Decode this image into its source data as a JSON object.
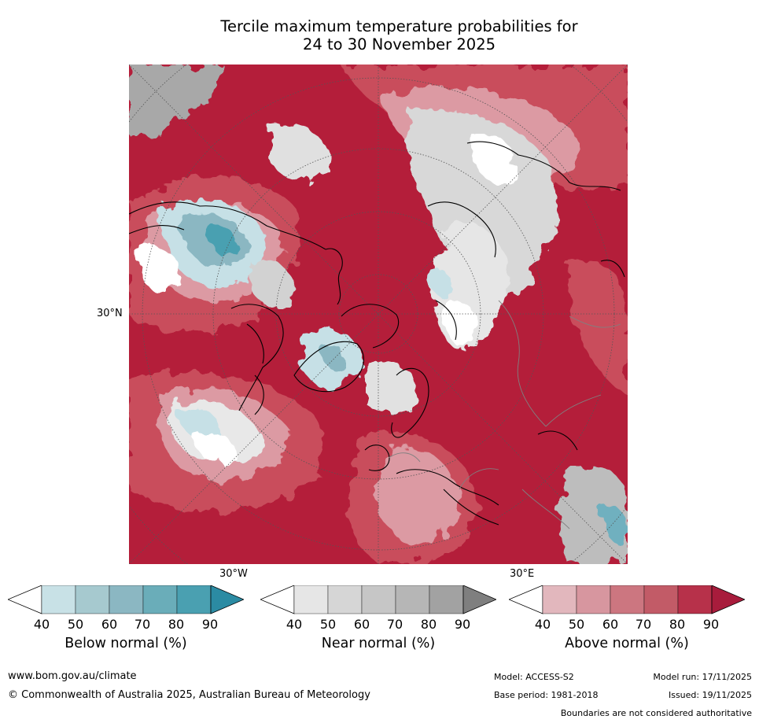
{
  "title": {
    "line1": "Tercile maximum temperature probabilities for",
    "line2": "24 to 30 November 2025"
  },
  "map": {
    "projection": "north-polar-stereographic",
    "lat_labels": [
      "30°N"
    ],
    "lon_labels": [
      "30°W",
      "30°E"
    ]
  },
  "colorbars": [
    {
      "label": "Below normal (%)",
      "ticks": [
        "40",
        "50",
        "60",
        "70",
        "80",
        "90"
      ],
      "colors": [
        "#ffffff",
        "#c8e1e6",
        "#a6c9cf",
        "#8bb7c2",
        "#6aadb9",
        "#4aa0b1",
        "#2b8ba3"
      ]
    },
    {
      "label": "Near normal (%)",
      "ticks": [
        "40",
        "50",
        "60",
        "70",
        "80",
        "90"
      ],
      "colors": [
        "#ffffff",
        "#e6e6e6",
        "#d6d6d6",
        "#c6c6c6",
        "#b6b6b6",
        "#a2a2a2",
        "#7f7f7f"
      ]
    },
    {
      "label": "Above normal (%)",
      "ticks": [
        "40",
        "50",
        "60",
        "70",
        "80",
        "90"
      ],
      "colors": [
        "#ffffff",
        "#e2b7bd",
        "#d7969f",
        "#cc7680",
        "#c25b67",
        "#b7314a",
        "#a81c3c"
      ]
    }
  ],
  "footer": {
    "website": "www.bom.gov.au/climate",
    "copyright": "© Commonwealth of Australia 2025, Australian Bureau of Meteorology",
    "model": "Model: ACCESS-S2",
    "model_run": "Model run: 17/11/2025",
    "base_period": "Base period: 1981-2018",
    "issued": "Issued: 19/11/2025",
    "disclaimer": "Boundaries are not considered authoritative"
  },
  "palette": {
    "above_high": "#b41e3a",
    "above_mid": "#c94d5c",
    "above_low": "#dc9aa3",
    "near": "#d8d8d8",
    "near_dark": "#a8a8a8",
    "below": "#6fb0bf",
    "below_light": "#c6e0e6",
    "land_line": "#000000",
    "border_line": "#808080"
  }
}
